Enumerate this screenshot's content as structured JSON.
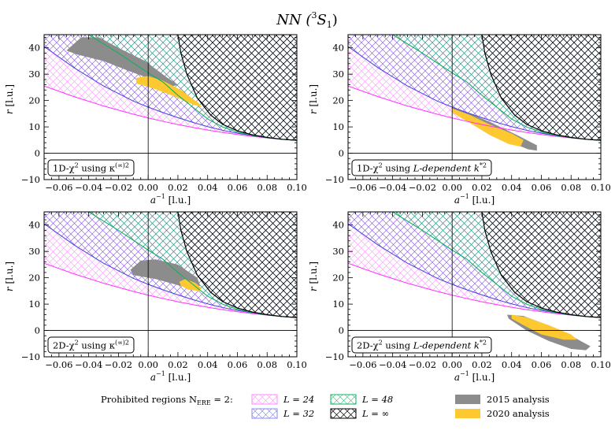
{
  "chart_data": {
    "type": "area",
    "title_main": "NN (",
    "title_sup": "3",
    "title_tail": "S",
    "title_sub": "1",
    "title_close": ")",
    "xlim": [
      -0.07,
      0.1
    ],
    "ylim": [
      -10,
      45
    ],
    "xticks": [
      -0.06,
      -0.04,
      -0.02,
      0.0,
      0.02,
      0.04,
      0.06,
      0.08,
      0.1
    ],
    "xtick_labels": [
      "−0.06",
      "−0.04",
      "−0.02",
      "0.00",
      "0.02",
      "0.04",
      "0.06",
      "0.08",
      "0.10"
    ],
    "yticks": [
      -10,
      0,
      10,
      20,
      30,
      40
    ],
    "ytick_labels": [
      "−10",
      "0",
      "10",
      "20",
      "30",
      "40"
    ],
    "xlabel_main": "a",
    "xlabel_sup": "−1",
    "xlabel_unit": " [l.u.]",
    "ylabel_main": "r",
    "ylabel_unit": " [l.u.]",
    "prohibited_regions": {
      "L24": {
        "name": "L = 24",
        "color": "#ff33ff",
        "points": [
          [
            -0.07,
            25.5
          ],
          [
            -0.05,
            21.5
          ],
          [
            -0.03,
            17.9
          ],
          [
            -0.01,
            14.8
          ],
          [
            0.0,
            13.4
          ],
          [
            0.01,
            12.1
          ],
          [
            0.02,
            10.9
          ],
          [
            0.03,
            9.8
          ],
          [
            0.04,
            8.8
          ],
          [
            0.05,
            7.9
          ],
          [
            0.06,
            7.1
          ],
          [
            0.07,
            6.4
          ],
          [
            0.08,
            5.8
          ],
          [
            0.09,
            5.3
          ],
          [
            0.1,
            4.9
          ]
        ]
      },
      "L32": {
        "name": "L = 32",
        "color": "#4040e0",
        "points": [
          [
            -0.07,
            40.5
          ],
          [
            -0.05,
            32.5
          ],
          [
            -0.03,
            25.5
          ],
          [
            -0.01,
            19.8
          ],
          [
            0.0,
            17.5
          ],
          [
            0.01,
            15.4
          ],
          [
            0.02,
            13.5
          ],
          [
            0.03,
            11.7
          ],
          [
            0.04,
            10.1
          ],
          [
            0.05,
            8.7
          ],
          [
            0.06,
            7.6
          ],
          [
            0.07,
            6.7
          ],
          [
            0.08,
            5.9
          ],
          [
            0.09,
            5.3
          ],
          [
            0.1,
            4.9
          ]
        ]
      },
      "L48": {
        "name": "L = 48",
        "color": "#10b060",
        "points": [
          [
            -0.04,
            45
          ],
          [
            -0.02,
            38
          ],
          [
            0.0,
            30.5
          ],
          [
            0.01,
            27
          ],
          [
            0.02,
            22
          ],
          [
            0.03,
            17.5
          ],
          [
            0.04,
            13
          ],
          [
            0.05,
            10
          ],
          [
            0.06,
            8
          ],
          [
            0.07,
            6.8
          ],
          [
            0.08,
            5.9
          ],
          [
            0.09,
            5.3
          ],
          [
            0.1,
            4.9
          ]
        ]
      },
      "Linf": {
        "name": "L = ∞",
        "color": "#000000",
        "points": [
          [
            0.02,
            45
          ],
          [
            0.022,
            38
          ],
          [
            0.026,
            30
          ],
          [
            0.033,
            21
          ],
          [
            0.042,
            14.5
          ],
          [
            0.05,
            11
          ],
          [
            0.06,
            8.5
          ],
          [
            0.07,
            7
          ],
          [
            0.08,
            6
          ],
          [
            0.09,
            5.3
          ],
          [
            0.1,
            4.9
          ]
        ]
      }
    },
    "legend": {
      "title": "Prohibited regions N",
      "title_sub": "ERE",
      "title_tail": " = 2:",
      "entries": [
        "L = 24",
        "L = 32",
        "L = 48",
        "L = ∞",
        "2015 analysis",
        "2020 analysis"
      ]
    },
    "series_colors": {
      "2015 analysis": "#8c8c8c",
      "2020 analysis": "#fdc830"
    },
    "panels": [
      {
        "label_prefix": "1D-χ",
        "label_sup": "2",
        "label_mid": " using κ",
        "label_sup2": "(∞)2",
        "label_tail": "",
        "analysis_2015": [
          [
            -0.055,
            39
          ],
          [
            -0.045,
            44
          ],
          [
            -0.033,
            44
          ],
          [
            -0.02,
            40
          ],
          [
            -0.002,
            35
          ],
          [
            0.012,
            29
          ],
          [
            0.02,
            26
          ],
          [
            0.017,
            25.5
          ],
          [
            0.005,
            27.5
          ],
          [
            -0.012,
            31
          ],
          [
            -0.03,
            35
          ],
          [
            -0.048,
            37.5
          ]
        ],
        "analysis_2020": [
          [
            -0.008,
            28.6
          ],
          [
            0.0,
            29.3
          ],
          [
            0.01,
            27.5
          ],
          [
            0.022,
            24
          ],
          [
            0.034,
            19
          ],
          [
            0.036,
            17.5
          ],
          [
            0.03,
            18.5
          ],
          [
            0.018,
            21.5
          ],
          [
            0.004,
            24.5
          ],
          [
            -0.008,
            26.5
          ]
        ]
      },
      {
        "label_prefix": "1D-χ",
        "label_sup": "2",
        "label_mid": " using ",
        "label_sup2": "*2",
        "label_tail": "L-dependent k",
        "analysis_2015": [
          [
            0.0,
            17.5
          ],
          [
            0.01,
            15.5
          ],
          [
            0.025,
            12
          ],
          [
            0.045,
            6.5
          ],
          [
            0.057,
            3
          ],
          [
            0.057,
            1
          ],
          [
            0.051,
            1.5
          ],
          [
            0.04,
            4
          ],
          [
            0.025,
            8.5
          ],
          [
            0.01,
            13
          ],
          [
            0.0,
            16
          ]
        ],
        "analysis_2020": [
          [
            0.0,
            17
          ],
          [
            0.012,
            14.5
          ],
          [
            0.025,
            11
          ],
          [
            0.04,
            7.5
          ],
          [
            0.048,
            5
          ],
          [
            0.046,
            2.5
          ],
          [
            0.038,
            3.5
          ],
          [
            0.025,
            7
          ],
          [
            0.012,
            11.5
          ],
          [
            0.0,
            15.5
          ]
        ]
      },
      {
        "label_prefix": "2D-χ",
        "label_sup": "2",
        "label_mid": " using κ",
        "label_sup2": "(∞)2",
        "label_tail": "",
        "analysis_2015": [
          [
            -0.012,
            23
          ],
          [
            -0.005,
            26.5
          ],
          [
            0.005,
            27
          ],
          [
            0.02,
            25
          ],
          [
            0.033,
            20
          ],
          [
            0.035,
            17
          ],
          [
            0.028,
            16
          ],
          [
            0.018,
            17.5
          ],
          [
            0.005,
            19.5
          ],
          [
            -0.01,
            21
          ]
        ],
        "analysis_2020": [
          [
            0.021,
            18.5
          ],
          [
            0.025,
            19.5
          ],
          [
            0.032,
            18
          ],
          [
            0.036,
            16
          ],
          [
            0.034,
            15
          ],
          [
            0.027,
            15.5
          ],
          [
            0.022,
            17
          ]
        ]
      },
      {
        "label_prefix": "2D-χ",
        "label_sup": "2",
        "label_mid": " using ",
        "label_sup2": "*2",
        "label_tail": "L-dependent k",
        "analysis_2015": [
          [
            0.037,
            6
          ],
          [
            0.048,
            5.5
          ],
          [
            0.062,
            2.5
          ],
          [
            0.08,
            -2
          ],
          [
            0.093,
            -6
          ],
          [
            0.09,
            -7.5
          ],
          [
            0.08,
            -7
          ],
          [
            0.065,
            -4
          ],
          [
            0.05,
            0
          ],
          [
            0.038,
            4.5
          ]
        ],
        "analysis_2020": [
          [
            0.04,
            6
          ],
          [
            0.05,
            5
          ],
          [
            0.065,
            2
          ],
          [
            0.08,
            -1.5
          ],
          [
            0.084,
            -3.5
          ],
          [
            0.075,
            -3.5
          ],
          [
            0.06,
            -1.5
          ],
          [
            0.048,
            2
          ],
          [
            0.04,
            4.5
          ]
        ]
      }
    ]
  }
}
